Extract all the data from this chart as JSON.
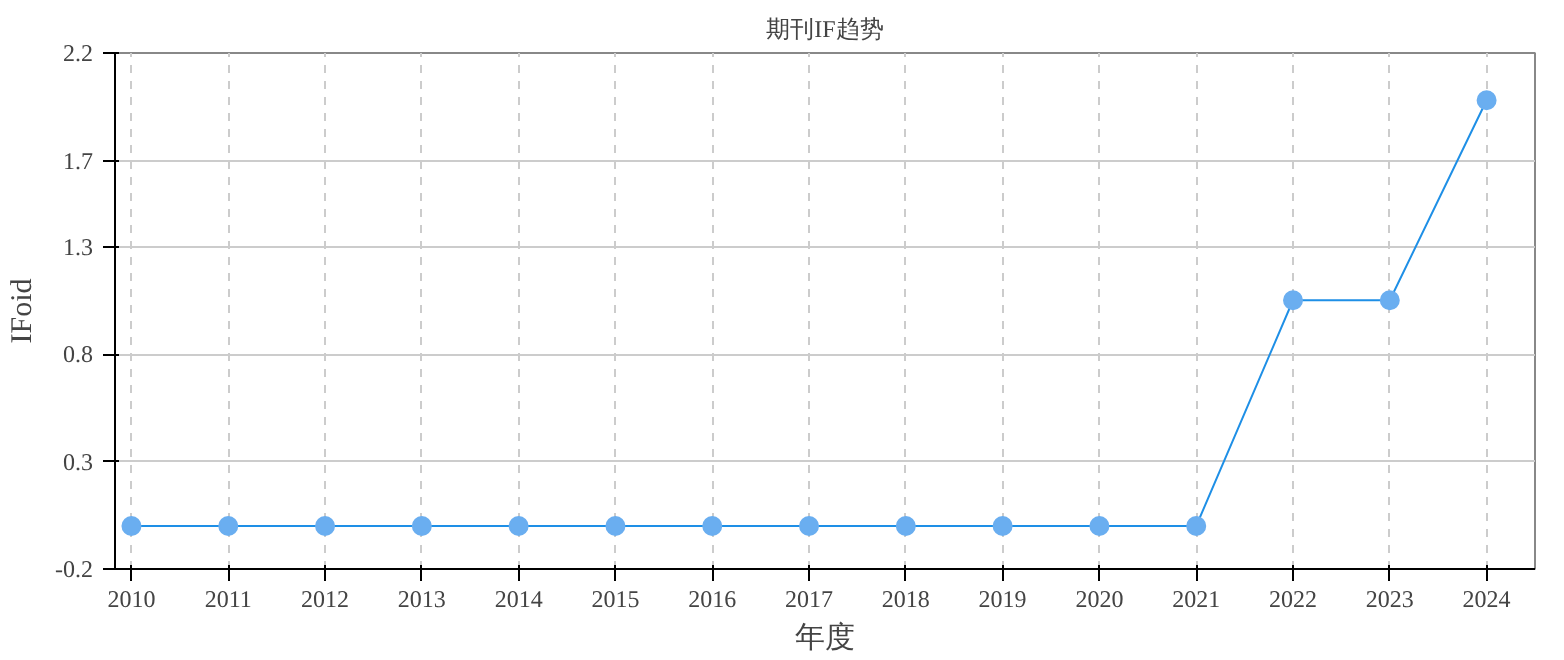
{
  "chart_data": {
    "type": "line",
    "title": "期刊IF趋势",
    "xlabel": "年度",
    "ylabel": "IFoid",
    "categories": [
      "2010",
      "2011",
      "2012",
      "2013",
      "2014",
      "2015",
      "2016",
      "2017",
      "2018",
      "2019",
      "2020",
      "2021",
      "2022",
      "2023",
      "2024"
    ],
    "series": [
      {
        "color": "#1e8fe6",
        "values": [
          0,
          0,
          0,
          0,
          0,
          0,
          0,
          0,
          0,
          0,
          0,
          0,
          1.05,
          1.05,
          1.98
        ]
      }
    ],
    "ylim": [
      -0.2,
      2.2
    ],
    "yticks": [
      -0.2,
      0.3,
      0.8,
      1.3,
      1.7,
      2.2
    ],
    "grid": true,
    "marker": "circle",
    "line_style": "solid"
  }
}
